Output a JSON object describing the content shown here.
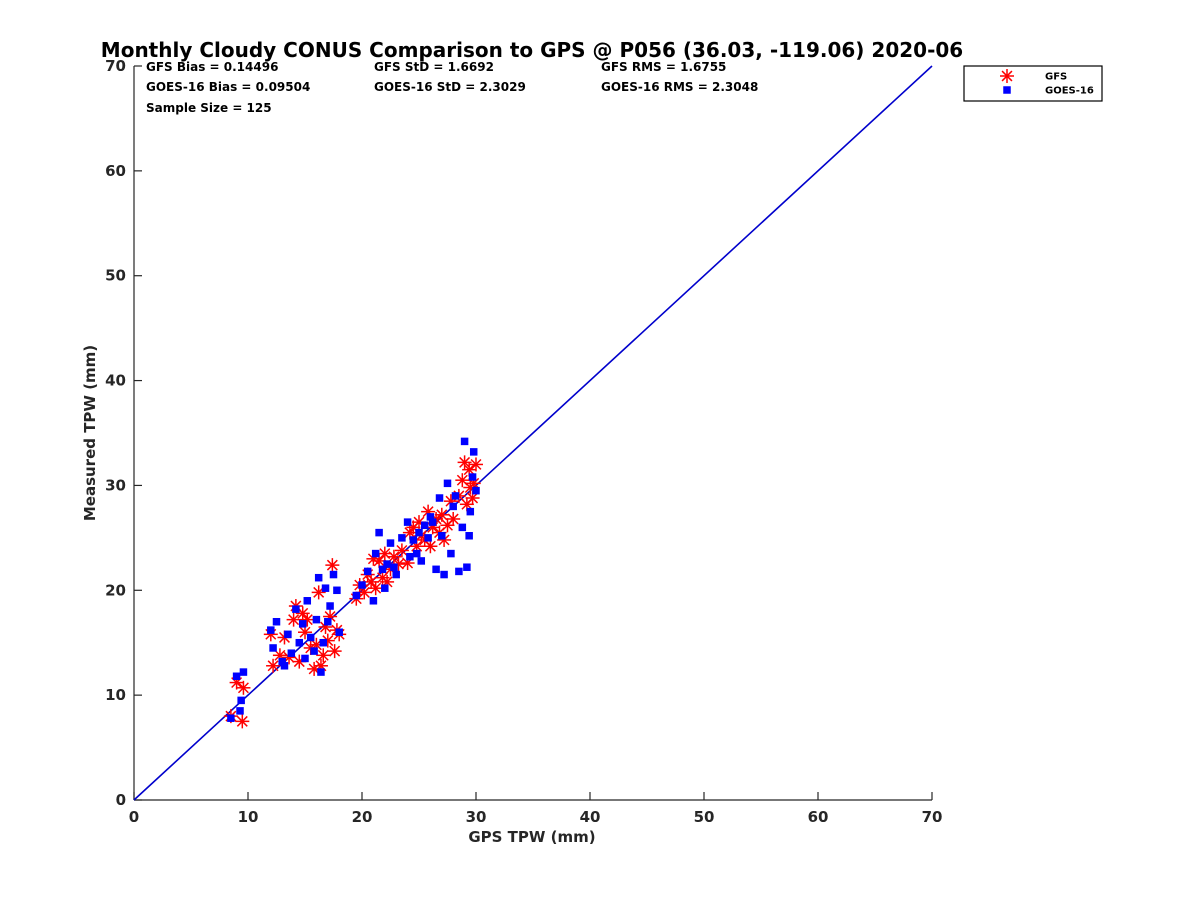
{
  "chart_data": {
    "type": "scatter",
    "title": "Monthly Cloudy CONUS Comparison to GPS @ P056 (36.03, -119.06) 2020-06",
    "xlabel": "GPS TPW (mm)",
    "ylabel": "Measured TPW (mm)",
    "xlim": [
      0,
      70
    ],
    "ylim": [
      0,
      70
    ],
    "x_ticks": [
      0,
      10,
      20,
      30,
      40,
      50,
      60,
      70
    ],
    "y_ticks": [
      0,
      10,
      20,
      30,
      40,
      50,
      60,
      70
    ],
    "x_tick_labels": [
      "0",
      "10",
      "20",
      "30",
      "40",
      "50",
      "60",
      "70"
    ],
    "y_tick_labels": [
      "0",
      "10",
      "20",
      "30",
      "40",
      "50",
      "60",
      "70"
    ],
    "grid": false,
    "legend_position": "outside-top-right",
    "stats": [
      [
        "GFS Bias = 0.14496",
        "GFS StD = 1.6692",
        "GFS RMS = 1.6755"
      ],
      [
        "GOES-16 Bias = 0.09504",
        "GOES-16 StD = 2.3029",
        "GOES-16 RMS = 2.3048"
      ],
      [
        "Sample Size = 125"
      ]
    ],
    "reference_line": {
      "x": [
        0,
        70
      ],
      "y": [
        0,
        70
      ],
      "color": "#0000cc"
    },
    "series": [
      {
        "name": "GFS",
        "marker": "asterisk",
        "color": "#ff0000",
        "points": [
          [
            8.5,
            8.0
          ],
          [
            9.0,
            11.2
          ],
          [
            9.5,
            7.5
          ],
          [
            9.6,
            10.7
          ],
          [
            12.0,
            15.8
          ],
          [
            12.2,
            12.8
          ],
          [
            12.8,
            13.8
          ],
          [
            13.2,
            15.5
          ],
          [
            13.6,
            13.6
          ],
          [
            14.0,
            17.2
          ],
          [
            14.2,
            18.5
          ],
          [
            14.5,
            13.2
          ],
          [
            14.8,
            17.8
          ],
          [
            15.0,
            16.0
          ],
          [
            15.2,
            17.2
          ],
          [
            15.5,
            14.5
          ],
          [
            15.8,
            12.5
          ],
          [
            16.0,
            14.8
          ],
          [
            16.2,
            19.8
          ],
          [
            16.4,
            12.8
          ],
          [
            16.6,
            13.8
          ],
          [
            16.8,
            16.5
          ],
          [
            17.0,
            15.2
          ],
          [
            17.2,
            17.5
          ],
          [
            17.4,
            22.4
          ],
          [
            17.6,
            14.2
          ],
          [
            17.8,
            16.2
          ],
          [
            18.0,
            15.8
          ],
          [
            19.5,
            19.2
          ],
          [
            19.8,
            20.5
          ],
          [
            20.2,
            19.8
          ],
          [
            20.5,
            21.5
          ],
          [
            20.8,
            20.8
          ],
          [
            21.0,
            23.0
          ],
          [
            21.2,
            20.2
          ],
          [
            21.5,
            22.8
          ],
          [
            21.8,
            21.2
          ],
          [
            22.0,
            23.5
          ],
          [
            22.2,
            20.8
          ],
          [
            22.5,
            22.0
          ],
          [
            22.8,
            23.2
          ],
          [
            23.2,
            22.5
          ],
          [
            23.5,
            23.8
          ],
          [
            24.0,
            22.6
          ],
          [
            24.2,
            25.5
          ],
          [
            24.5,
            26.0
          ],
          [
            24.8,
            24.2
          ],
          [
            25.0,
            26.5
          ],
          [
            25.2,
            25.2
          ],
          [
            25.5,
            24.8
          ],
          [
            25.8,
            27.5
          ],
          [
            26.0,
            24.2
          ],
          [
            26.2,
            26.0
          ],
          [
            26.5,
            26.8
          ],
          [
            26.8,
            25.5
          ],
          [
            27.0,
            27.2
          ],
          [
            27.2,
            24.8
          ],
          [
            27.5,
            26.2
          ],
          [
            27.8,
            28.5
          ],
          [
            28.0,
            26.8
          ],
          [
            28.5,
            29.0
          ],
          [
            28.8,
            30.5
          ],
          [
            29.0,
            32.2
          ],
          [
            29.2,
            28.2
          ],
          [
            29.4,
            31.5
          ],
          [
            29.5,
            29.8
          ],
          [
            29.7,
            28.8
          ],
          [
            29.8,
            30.2
          ],
          [
            30.0,
            32.0
          ]
        ]
      },
      {
        "name": "GOES-16",
        "marker": "square",
        "color": "#0000ff",
        "points": [
          [
            8.5,
            7.8
          ],
          [
            9.0,
            11.8
          ],
          [
            9.3,
            8.5
          ],
          [
            9.4,
            9.5
          ],
          [
            9.6,
            12.2
          ],
          [
            12.0,
            16.2
          ],
          [
            12.2,
            14.5
          ],
          [
            12.5,
            17.0
          ],
          [
            13.0,
            13.2
          ],
          [
            13.2,
            12.8
          ],
          [
            13.5,
            15.8
          ],
          [
            13.8,
            14.0
          ],
          [
            14.2,
            18.2
          ],
          [
            14.5,
            15.0
          ],
          [
            14.8,
            16.8
          ],
          [
            15.0,
            13.5
          ],
          [
            15.2,
            19.0
          ],
          [
            15.5,
            15.5
          ],
          [
            15.8,
            14.2
          ],
          [
            16.0,
            17.2
          ],
          [
            16.2,
            21.2
          ],
          [
            16.4,
            12.2
          ],
          [
            16.6,
            15.0
          ],
          [
            16.8,
            20.2
          ],
          [
            17.0,
            17.0
          ],
          [
            17.2,
            18.5
          ],
          [
            17.5,
            21.5
          ],
          [
            17.8,
            20.0
          ],
          [
            18.0,
            16.0
          ],
          [
            19.5,
            19.5
          ],
          [
            20.0,
            20.5
          ],
          [
            20.5,
            21.8
          ],
          [
            21.0,
            19.0
          ],
          [
            21.2,
            23.5
          ],
          [
            21.5,
            25.5
          ],
          [
            21.8,
            22.0
          ],
          [
            22.0,
            20.2
          ],
          [
            22.2,
            22.5
          ],
          [
            22.5,
            24.5
          ],
          [
            22.8,
            22.2
          ],
          [
            23.0,
            21.5
          ],
          [
            23.5,
            25.0
          ],
          [
            24.0,
            26.5
          ],
          [
            24.2,
            23.2
          ],
          [
            24.5,
            24.8
          ],
          [
            24.8,
            23.5
          ],
          [
            25.0,
            25.5
          ],
          [
            25.2,
            22.8
          ],
          [
            25.5,
            26.2
          ],
          [
            25.8,
            25.0
          ],
          [
            26.0,
            27.0
          ],
          [
            26.2,
            26.5
          ],
          [
            26.5,
            22.0
          ],
          [
            26.8,
            28.8
          ],
          [
            27.0,
            25.2
          ],
          [
            27.2,
            21.5
          ],
          [
            27.5,
            30.2
          ],
          [
            27.8,
            23.5
          ],
          [
            28.0,
            28.0
          ],
          [
            28.2,
            29.0
          ],
          [
            28.5,
            21.8
          ],
          [
            28.8,
            26.0
          ],
          [
            29.0,
            34.2
          ],
          [
            29.2,
            22.2
          ],
          [
            29.4,
            25.2
          ],
          [
            29.5,
            27.5
          ],
          [
            29.7,
            30.8
          ],
          [
            29.8,
            33.2
          ],
          [
            30.0,
            29.5
          ]
        ]
      }
    ]
  }
}
